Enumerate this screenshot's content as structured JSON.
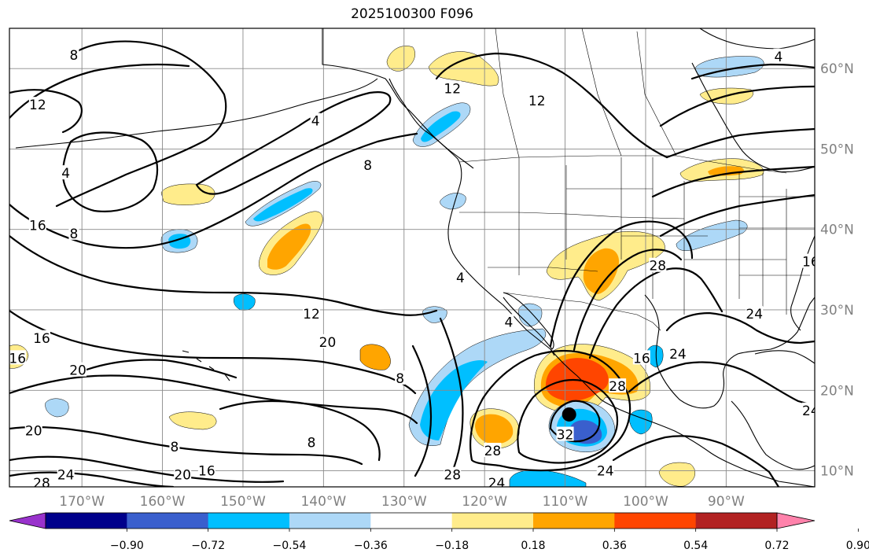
{
  "title": "2025100300 F096",
  "axes": {
    "lon_labels": [
      "170°W",
      "160°W",
      "150°W",
      "140°W",
      "130°W",
      "120°W",
      "110°W",
      "100°W",
      "90°W"
    ],
    "lat_labels": [
      "60°N",
      "50°N",
      "40°N",
      "30°N",
      "20°N",
      "10°N"
    ],
    "lon_values": [
      -170,
      -160,
      -150,
      -140,
      -130,
      -120,
      -110,
      -100,
      -90
    ],
    "lat_values": [
      60,
      50,
      40,
      30,
      20,
      10
    ],
    "lon_range": [
      -179,
      -79
    ],
    "lat_range": [
      8,
      65
    ],
    "grid": true
  },
  "colorbar": {
    "ticks": [
      "−0.90",
      "−0.72",
      "−0.54",
      "−0.36",
      "−0.18",
      "0.18",
      "0.36",
      "0.54",
      "0.72",
      "0.90"
    ],
    "colors": [
      "#9932cc",
      "#00008b",
      "#3a5fcd",
      "#00bfff",
      "#add8f7",
      "#ffffff",
      "#ffec8b",
      "#ffa500",
      "#ff4500",
      "#b22222",
      "#ff82ab"
    ],
    "extend": "both"
  },
  "contour_labels": [
    {
      "text": "8",
      "lon": -171,
      "lat": 61.7
    },
    {
      "text": "12",
      "lon": -175.5,
      "lat": 55.5
    },
    {
      "text": "4",
      "lon": -141,
      "lat": 53.5
    },
    {
      "text": "4",
      "lon": -172,
      "lat": 47
    },
    {
      "text": "8",
      "lon": -134.5,
      "lat": 48
    },
    {
      "text": "12",
      "lon": -124,
      "lat": 57.5
    },
    {
      "text": "12",
      "lon": -113.5,
      "lat": 56
    },
    {
      "text": "16",
      "lon": -175.5,
      "lat": 40.5
    },
    {
      "text": "8",
      "lon": -171,
      "lat": 39.5
    },
    {
      "text": "12",
      "lon": -141.5,
      "lat": 29.5
    },
    {
      "text": "16",
      "lon": -175,
      "lat": 26.5
    },
    {
      "text": "20",
      "lon": -170.5,
      "lat": 22.5
    },
    {
      "text": "20",
      "lon": -139.5,
      "lat": 26
    },
    {
      "text": "8",
      "lon": -130.5,
      "lat": 21.5
    },
    {
      "text": "4",
      "lon": -123,
      "lat": 34
    },
    {
      "text": "4",
      "lon": -117,
      "lat": 28.5
    },
    {
      "text": "20",
      "lon": -176,
      "lat": 15
    },
    {
      "text": "8",
      "lon": -141.5,
      "lat": 13.5
    },
    {
      "text": "8",
      "lon": -158.5,
      "lat": 13
    },
    {
      "text": "20",
      "lon": -157.5,
      "lat": 9.5
    },
    {
      "text": "16",
      "lon": -154.5,
      "lat": 10
    },
    {
      "text": "28",
      "lon": -175,
      "lat": 8.5
    },
    {
      "text": "24",
      "lon": -172,
      "lat": 9.5
    },
    {
      "text": "28",
      "lon": -119,
      "lat": 12.5
    },
    {
      "text": "28",
      "lon": -124,
      "lat": 9.5
    },
    {
      "text": "32",
      "lon": -110,
      "lat": 14.5
    },
    {
      "text": "24",
      "lon": -118.5,
      "lat": 8.5
    },
    {
      "text": "24",
      "lon": -105,
      "lat": 10
    },
    {
      "text": "28",
      "lon": -103.5,
      "lat": 20.5
    },
    {
      "text": "16",
      "lon": -100.5,
      "lat": 24
    },
    {
      "text": "24",
      "lon": -96,
      "lat": 24.5
    },
    {
      "text": "28",
      "lon": -98.5,
      "lat": 35.5
    },
    {
      "text": "24",
      "lon": -86.5,
      "lat": 29.5
    },
    {
      "text": "16",
      "lon": -79.5,
      "lat": 36
    },
    {
      "text": "24",
      "lon": -79.5,
      "lat": 17.5
    },
    {
      "text": "4",
      "lon": -83.5,
      "lat": 61.5
    },
    {
      "text": "16",
      "lon": -178,
      "lat": 24
    }
  ],
  "cyclone_marker": {
    "lon": -109.5,
    "lat": 17
  }
}
